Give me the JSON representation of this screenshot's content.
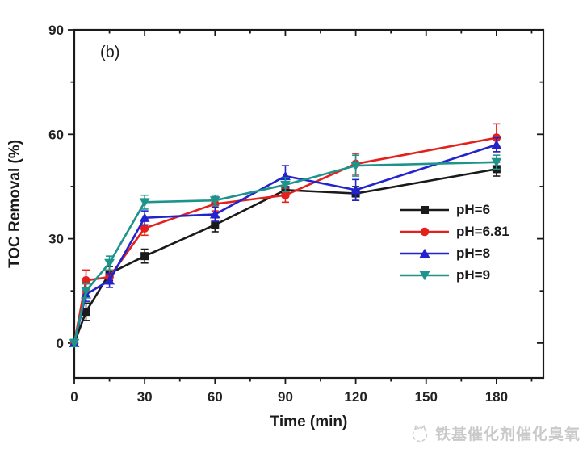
{
  "figure": {
    "panel_label": "(b)"
  },
  "chart_data": {
    "type": "line",
    "title": "",
    "xlabel": "Time (min)",
    "ylabel": "TOC Removal (%)",
    "xlim": [
      0,
      200
    ],
    "ylim": [
      -10,
      90
    ],
    "x_major_ticks": [
      0,
      30,
      60,
      90,
      120,
      150,
      180
    ],
    "x_minor_ticks": [
      15,
      45,
      75,
      105,
      135,
      165,
      195
    ],
    "y_major_ticks": [
      0,
      30,
      60,
      90
    ],
    "y_minor_ticks": [
      15,
      45,
      75
    ],
    "grid": false,
    "legend_position": "right-middle",
    "x": [
      0,
      5,
      15,
      30,
      60,
      90,
      120,
      180
    ],
    "series": [
      {
        "name": "pH=6",
        "color": "#1a1a1a",
        "marker": "square",
        "values": [
          0,
          9,
          20,
          25,
          34,
          44,
          43,
          50
        ],
        "errors": [
          1,
          2.5,
          2,
          2,
          2,
          2,
          2,
          2
        ]
      },
      {
        "name": "pH=6.81",
        "color": "#e3201c",
        "marker": "circle",
        "values": [
          0,
          18,
          19,
          33,
          40,
          42.5,
          51.5,
          59
        ],
        "errors": [
          1,
          3,
          2,
          2,
          2,
          2,
          3,
          4
        ]
      },
      {
        "name": "pH=8",
        "color": "#2323cd",
        "marker": "triangle-up",
        "values": [
          0,
          14,
          18,
          36,
          37,
          48,
          44,
          57
        ],
        "errors": [
          1,
          2,
          2,
          2,
          2,
          3,
          3,
          2
        ]
      },
      {
        "name": "pH=9",
        "color": "#1d948b",
        "marker": "triangle-down",
        "values": [
          0,
          15,
          23,
          40.5,
          41,
          45.5,
          51,
          52
        ],
        "errors": [
          1,
          2,
          2,
          2,
          1.5,
          2,
          3,
          2
        ]
      }
    ]
  },
  "watermark": {
    "text": "铁基催化剂催化臭氧",
    "color": "#c9c9c9"
  }
}
